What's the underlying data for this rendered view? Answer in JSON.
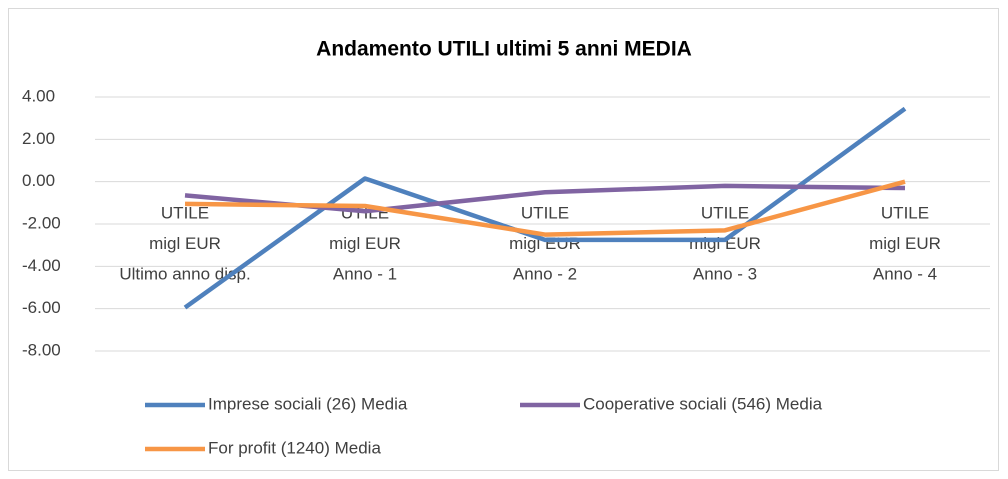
{
  "chart_data": {
    "type": "line",
    "title": "Andamento UTILI ultimi 5 anni MEDIA",
    "categories": [
      [
        "UTILE",
        "migl EUR",
        "Ultimo anno disp."
      ],
      [
        "UTILE",
        "migl EUR",
        "Anno - 1"
      ],
      [
        "UTILE",
        "migl EUR",
        "Anno - 2"
      ],
      [
        "UTILE",
        "migl EUR",
        "Anno - 3"
      ],
      [
        "UTILE",
        "migl EUR",
        "Anno - 4"
      ]
    ],
    "series": [
      {
        "name": "Imprese sociali (26) Media",
        "color": "#4f81bd",
        "values": [
          -5.95,
          0.15,
          -2.75,
          -2.75,
          3.45
        ]
      },
      {
        "name": "Cooperative sociali (546) Media",
        "color": "#8064a2",
        "values": [
          -0.65,
          -1.4,
          -0.5,
          -0.2,
          -0.3
        ]
      },
      {
        "name": "For profit (1240) Media",
        "color": "#f79646",
        "values": [
          -1.05,
          -1.15,
          -2.5,
          -2.3,
          0.0
        ]
      }
    ],
    "ylim": [
      -8,
      4
    ],
    "yticks": [
      {
        "value": 4,
        "label": "4.00"
      },
      {
        "value": 2,
        "label": "2.00"
      },
      {
        "value": 0,
        "label": "0.00"
      },
      {
        "value": -2,
        "label": "-2.00"
      },
      {
        "value": -4,
        "label": "-4.00"
      },
      {
        "value": -6,
        "label": "-6.00"
      },
      {
        "value": -8,
        "label": "-8.00"
      }
    ],
    "grid": true
  }
}
